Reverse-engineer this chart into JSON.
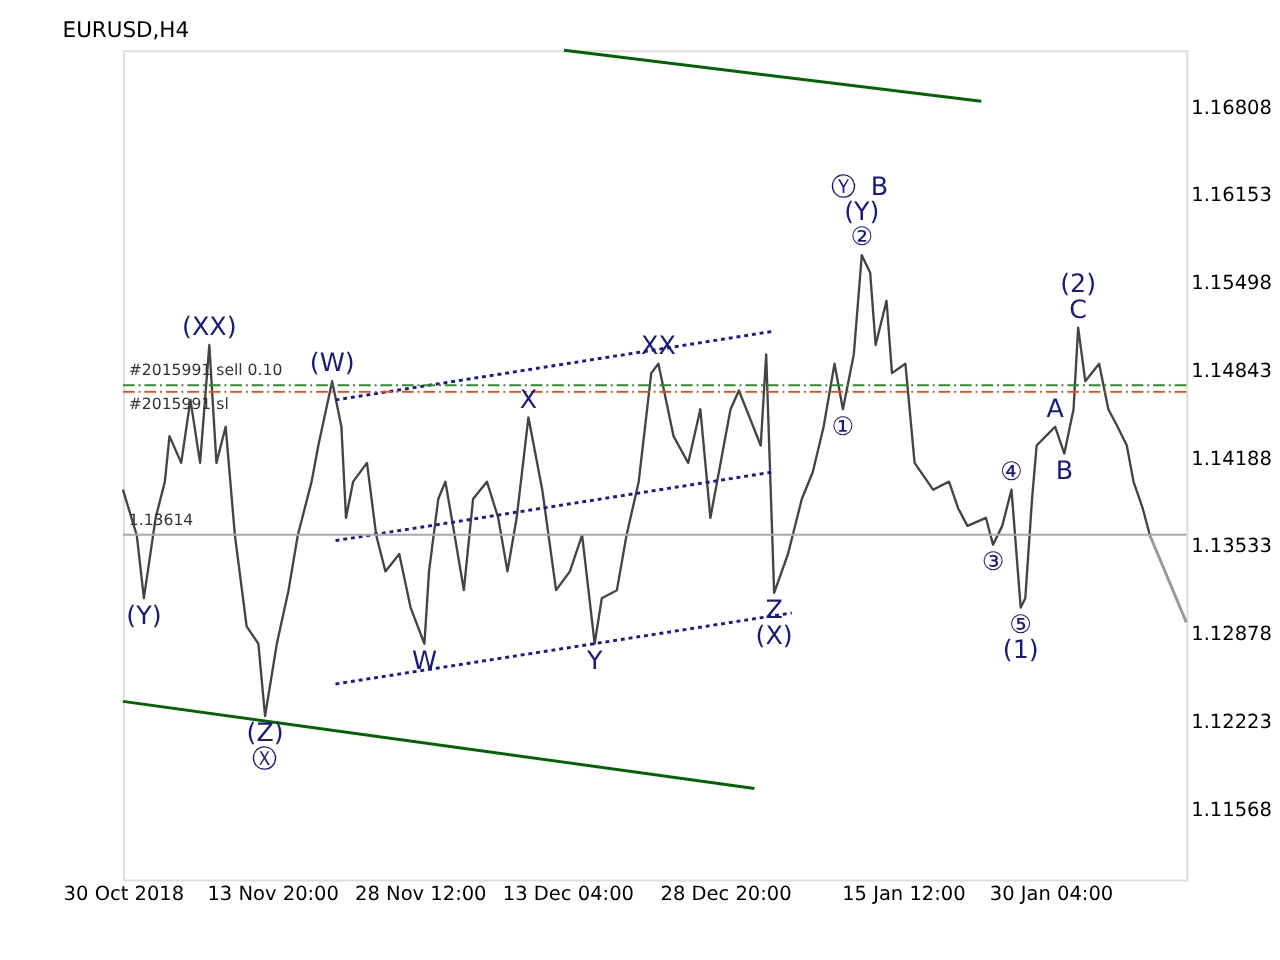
{
  "chart_data": {
    "type": "line",
    "title": "EURUSD,H4",
    "x": [
      "2018-10-30T00:00",
      "2018-10-31T09:00",
      "2018-11-01T02:00",
      "2018-11-02T06:00",
      "2018-11-03T04:00",
      "2018-11-03T15:00",
      "2018-11-04T19:00",
      "2018-11-05T17:00",
      "2018-11-06T16:00",
      "2018-11-07T14:00",
      "2018-11-08T07:00",
      "2018-11-09T05:00",
      "2018-11-10T03:00",
      "2018-11-11T07:00",
      "2018-11-12T11:00",
      "2018-11-13T03:00",
      "2018-11-14T07:00",
      "2018-11-15T11:00",
      "2018-11-16T09:00",
      "2018-11-17T18:00",
      "2018-11-18T10:00",
      "2018-11-19T19:00",
      "2018-11-20T17:00",
      "2018-11-21T04:00",
      "2018-11-21T21:00",
      "2018-11-23T06:00",
      "2018-11-24T04:00",
      "2018-11-25T02:00",
      "2018-11-26T11:00",
      "2018-11-27T14:00",
      "2018-11-28T23:00",
      "2018-11-29T10:00",
      "2018-11-30T08:00",
      "2018-12-01T01:00",
      "2018-12-01T23:00",
      "2018-12-02T21:00",
      "2018-12-03T19:00",
      "2018-12-05T04:00",
      "2018-12-06T07:00",
      "2018-12-07T05:00",
      "2018-12-08T03:00",
      "2018-12-09T07:00",
      "2018-12-10T16:00",
      "2018-12-12T01:00",
      "2018-12-13T10:00",
      "2018-12-14T15:00",
      "2018-12-15T21:00",
      "2018-12-16T14:00",
      "2018-12-18T02:00",
      "2018-12-19T01:00",
      "2018-12-20T06:00",
      "2018-12-21T12:00",
      "2018-12-22T05:00",
      "2018-12-23T17:00",
      "2018-12-25T04:00",
      "2018-12-26T09:00",
      "2018-12-27T09:00",
      "2018-12-29T09:00",
      "2018-12-30T05:00",
      "2019-01-01T09:00",
      "2019-01-01T22:00",
      "2019-01-02T17:00",
      "2019-01-04T02:00",
      "2019-01-05T11:00",
      "2019-01-06T13:00",
      "2019-01-07T15:00",
      "2019-01-08T17:00",
      "2019-01-09T13:00",
      "2019-01-10T15:00",
      "2019-01-11T10:00",
      "2019-01-12T06:00",
      "2019-01-12T19:00",
      "2019-01-13T21:00",
      "2019-01-14T10:00",
      "2019-01-15T18:00",
      "2019-01-16T16:00",
      "2019-01-18T12:00",
      "2019-01-20T02:00",
      "2019-01-21T00:00",
      "2019-01-21T22:00",
      "2019-01-23T18:00",
      "2019-01-24T11:00",
      "2019-01-25T09:00",
      "2019-01-26T07:00",
      "2019-01-27T05:00",
      "2019-01-27T16:00",
      "2019-01-28T08:00",
      "2019-01-28T19:00",
      "2019-01-29T17:00",
      "2019-01-30T15:00",
      "2019-01-31T13:00",
      "2019-02-01T11:00",
      "2019-02-01T22:00",
      "2019-02-02T15:00",
      "2019-02-04T00:00",
      "2019-02-04T22:00",
      "2019-02-05T20:00",
      "2019-02-06T18:00",
      "2019-02-07T10:00",
      "2019-02-08T08:00",
      "2019-02-09T01:00"
    ],
    "series": [
      {
        "color": "#444444",
        "values": [
          1.1395,
          1.1361,
          1.1314,
          1.1374,
          1.1401,
          1.1435,
          1.1415,
          1.1462,
          1.1415,
          1.1503,
          1.1415,
          1.1442,
          1.1361,
          1.1293,
          1.128,
          1.1226,
          1.128,
          1.132,
          1.1361,
          1.1401,
          1.1428,
          1.1476,
          1.1442,
          1.1374,
          1.1401,
          1.1415,
          1.1361,
          1.1334,
          1.1347,
          1.1307,
          1.128,
          1.1334,
          1.1388,
          1.1401,
          1.1361,
          1.132,
          1.1388,
          1.1401,
          1.1374,
          1.1334,
          1.1374,
          1.1449,
          1.1395,
          1.132,
          1.1334,
          1.1361,
          1.128,
          1.1314,
          1.132,
          1.1361,
          1.1401,
          1.1482,
          1.1489,
          1.1435,
          1.1415,
          1.1455,
          1.1374,
          1.1455,
          1.1469,
          1.1428,
          1.1496,
          1.1318,
          1.1347,
          1.1388,
          1.1408,
          1.1442,
          1.1489,
          1.1455,
          1.1496,
          1.157,
          1.1557,
          1.1503,
          1.1536,
          1.1482,
          1.1489,
          1.1415,
          1.1395,
          1.1401,
          1.1381,
          1.1368,
          1.1374,
          1.1354,
          1.1368,
          1.1395,
          1.1307,
          1.1314,
          1.1388,
          1.1428,
          1.1435,
          1.1442,
          1.1422,
          1.1455,
          1.1516,
          1.1476,
          1.1489,
          1.1455,
          1.1442,
          1.1428,
          1.1401,
          1.1381,
          1.1361
        ]
      },
      {
        "color": "#999999",
        "x": [
          "2019-02-09T01:00",
          "2019-02-12T16:00"
        ],
        "values": [
          1.1361,
          1.1296
        ]
      },
      {
        "color": "#006400",
        "x": [
          "2018-12-12T20:00",
          "2019-01-23T07:00"
        ],
        "values": [
          1.1723,
          1.1685
        ]
      },
      {
        "color": "#006400",
        "x": [
          "2018-10-30T00:00",
          "2018-12-31T18:00"
        ],
        "values": [
          1.1237,
          1.1172
        ]
      },
      {
        "color": "#1a1a8c",
        "line_style": "dotted",
        "x": [
          "2018-11-20T03:00",
          "2019-01-02T10:00"
        ],
        "values": [
          1.1462,
          1.1513
        ]
      },
      {
        "color": "#1a1a8c",
        "line_style": "dotted",
        "x": [
          "2018-11-20T03:00",
          "2019-01-02T10:00"
        ],
        "values": [
          1.1357,
          1.1408
        ]
      },
      {
        "color": "#1a1a8c",
        "line_style": "dotted",
        "x": [
          "2018-11-20T03:00",
          "2019-01-04T11:00"
        ],
        "values": [
          1.125,
          1.1303
        ]
      }
    ],
    "xlim": [
      "2018-10-30T00:00",
      "2019-02-12T16:00"
    ],
    "xticks": [
      {
        "value": "2018-10-30T00:00",
        "label": "30 Oct 2018"
      },
      {
        "value": "2018-11-13T20:00",
        "label": "13 Nov 20:00"
      },
      {
        "value": "2018-11-28T12:00",
        "label": "28 Nov 12:00"
      },
      {
        "value": "2018-12-13T04:00",
        "label": "13 Dec 04:00"
      },
      {
        "value": "2018-12-28T20:00",
        "label": "28 Dec 20:00"
      },
      {
        "value": "2019-01-15T12:00",
        "label": "15 Jan 12:00"
      },
      {
        "value": "2019-01-30T04:00",
        "label": "30 Jan 04:00"
      }
    ],
    "ylim": [
      1.1104,
      1.1723
    ],
    "yticks": [
      1.16808,
      1.16153,
      1.15498,
      1.14843,
      1.14188,
      1.13533,
      1.12878,
      1.12223,
      1.11568
    ],
    "grid": false,
    "marker": "none",
    "line_style": "solid",
    "ref_lines": [
      {
        "axis": "y",
        "value": 1.1473,
        "label": "#2015991 sell 0.10",
        "color": "#2e8b2e",
        "line_style": "dashdot"
      },
      {
        "axis": "y",
        "value": 1.1468,
        "label": "#2015991 sl",
        "color": "#ff4500",
        "line_style": "dashdot"
      },
      {
        "axis": "y",
        "value": 1.13614,
        "label": "1.13614",
        "color": "#aaaaaa",
        "line_style": "solid"
      }
    ],
    "annotations": [
      {
        "text": "(XX)",
        "x": "2018-11-07T14:00",
        "y": 1.1503
      },
      {
        "text": "(W)",
        "x": "2018-11-19T19:00",
        "y": 1.1476
      },
      {
        "text": "(Y)",
        "x": "2018-11-01T02:00",
        "y": 1.1314
      },
      {
        "text": "(Z)",
        "x": "2018-11-13T03:00",
        "y": 1.1226
      },
      {
        "text": "Ⓧ",
        "x": "2018-11-13T03:00",
        "y": 1.1226
      },
      {
        "text": "W",
        "x": "2018-11-28T23:00",
        "y": 1.128
      },
      {
        "text": "Y",
        "x": "2018-12-15T21:00",
        "y": 1.128
      },
      {
        "text": "X",
        "x": "2018-12-09T07:00",
        "y": 1.1449
      },
      {
        "text": "XX",
        "x": "2018-12-22T05:00",
        "y": 1.1489
      },
      {
        "text": "Z",
        "x": "2019-01-02T17:00",
        "y": 1.1318
      },
      {
        "text": "(X)",
        "x": "2019-01-02T17:00",
        "y": 1.1318
      },
      {
        "text": "B",
        "x": "2019-01-11T10:00",
        "y": 1.157
      },
      {
        "text": "Ⓨ",
        "x": "2019-01-11T10:00",
        "y": 1.157
      },
      {
        "text": "(Y)",
        "x": "2019-01-11T10:00",
        "y": 1.157
      },
      {
        "text": "②",
        "x": "2019-01-11T10:00",
        "y": 1.157
      },
      {
        "text": "①",
        "x": "2019-01-09T13:00",
        "y": 1.1455
      },
      {
        "text": "④",
        "x": "2019-01-26T07:00",
        "y": 1.1395
      },
      {
        "text": "③",
        "x": "2019-01-24T11:00",
        "y": 1.1354
      },
      {
        "text": "⑤",
        "x": "2019-01-27T05:00",
        "y": 1.1307
      },
      {
        "text": "(1)",
        "x": "2019-01-27T05:00",
        "y": 1.1307
      },
      {
        "text": "(2)",
        "x": "2019-02-01T22:00",
        "y": 1.1516
      },
      {
        "text": "C",
        "x": "2019-02-01T22:00",
        "y": 1.1516
      },
      {
        "text": "A",
        "x": "2019-01-30T15:00",
        "y": 1.1442
      },
      {
        "text": "B",
        "x": "2019-01-31T13:00",
        "y": 1.1422
      }
    ]
  }
}
